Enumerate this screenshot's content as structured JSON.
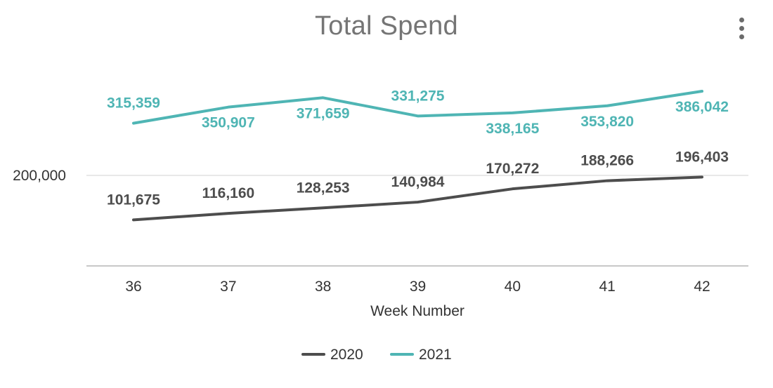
{
  "title": "Total Spend",
  "menu": {
    "icon": "more-vert-icon"
  },
  "colors": {
    "series_2020": "#4d4d4d",
    "series_2021": "#4fb5b4",
    "gridline": "#e0e0e0",
    "baseline": "#c8c8c8"
  },
  "chart_data": {
    "type": "line",
    "title": "Total Spend",
    "xlabel": "Week Number",
    "ylabel": "",
    "categories": [
      "36",
      "37",
      "38",
      "39",
      "40",
      "41",
      "42"
    ],
    "series": [
      {
        "name": "2020",
        "values": [
          101675,
          116160,
          128253,
          140984,
          170272,
          188266,
          196403
        ],
        "labels": [
          "101,675",
          "116,160",
          "128,253",
          "140,984",
          "170,272",
          "188,266",
          "196,403"
        ]
      },
      {
        "name": "2021",
        "values": [
          315359,
          350907,
          371659,
          331275,
          338165,
          353820,
          386042
        ],
        "labels": [
          "315,359",
          "350,907",
          "371,659",
          "331,275",
          "338,165",
          "353,820",
          "386,042"
        ]
      }
    ],
    "yticks": [
      200000
    ],
    "ytick_labels": [
      "200,000"
    ],
    "grid": true,
    "legend": "bottom-center",
    "data_labels": true
  }
}
